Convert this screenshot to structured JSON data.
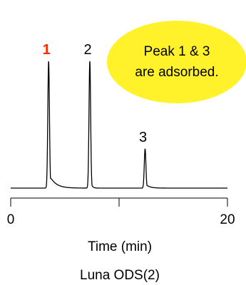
{
  "chart_data": {
    "type": "line",
    "x_range": [
      0,
      20
    ],
    "x_ticks": [
      0,
      10,
      20
    ],
    "x_tick_labels": [
      "0",
      "",
      "20"
    ],
    "xlabel": "Time (min)",
    "caption": "Luna ODS(2)",
    "grid": false,
    "peaks": [
      {
        "label": "1",
        "rt": 3.5,
        "height": 1.0,
        "color": "#ff2a00",
        "tail": 0.55
      },
      {
        "label": "2",
        "rt": 7.3,
        "height": 1.0,
        "color": "#000000",
        "tail": 0.12
      },
      {
        "label": "3",
        "rt": 12.4,
        "height": 0.31,
        "color": "#000000",
        "tail": 0.35
      }
    ],
    "annotation": {
      "lines": [
        "Peak 1 & 3",
        "are adsorbed."
      ],
      "fill": "#fff22a"
    }
  }
}
